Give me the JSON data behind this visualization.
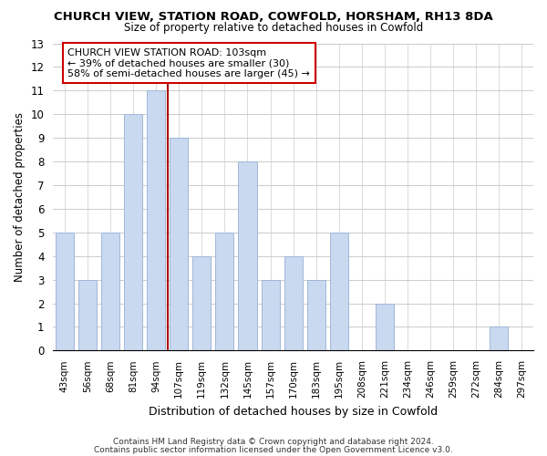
{
  "title": "CHURCH VIEW, STATION ROAD, COWFOLD, HORSHAM, RH13 8DA",
  "subtitle": "Size of property relative to detached houses in Cowfold",
  "xlabel": "Distribution of detached houses by size in Cowfold",
  "ylabel": "Number of detached properties",
  "categories": [
    "43sqm",
    "56sqm",
    "68sqm",
    "81sqm",
    "94sqm",
    "107sqm",
    "119sqm",
    "132sqm",
    "145sqm",
    "157sqm",
    "170sqm",
    "183sqm",
    "195sqm",
    "208sqm",
    "221sqm",
    "234sqm",
    "246sqm",
    "259sqm",
    "272sqm",
    "284sqm",
    "297sqm"
  ],
  "values": [
    5,
    3,
    5,
    10,
    11,
    9,
    4,
    5,
    8,
    3,
    4,
    3,
    5,
    0,
    2,
    0,
    0,
    0,
    0,
    1,
    0
  ],
  "bar_color": "#c8d9f0",
  "bar_edgecolor": "#a0b8d8",
  "marker_bin_index": 4,
  "marker_color": "#aa0000",
  "ylim": [
    0,
    13
  ],
  "yticks": [
    0,
    1,
    2,
    3,
    4,
    5,
    6,
    7,
    8,
    9,
    10,
    11,
    12,
    13
  ],
  "annotation_title": "CHURCH VIEW STATION ROAD: 103sqm",
  "annotation_line1": "← 39% of detached houses are smaller (30)",
  "annotation_line2": "58% of semi-detached houses are larger (45) →",
  "footnote1": "Contains HM Land Registry data © Crown copyright and database right 2024.",
  "footnote2": "Contains public sector information licensed under the Open Government Licence v3.0.",
  "background_color": "#ffffff",
  "grid_color": "#cccccc"
}
